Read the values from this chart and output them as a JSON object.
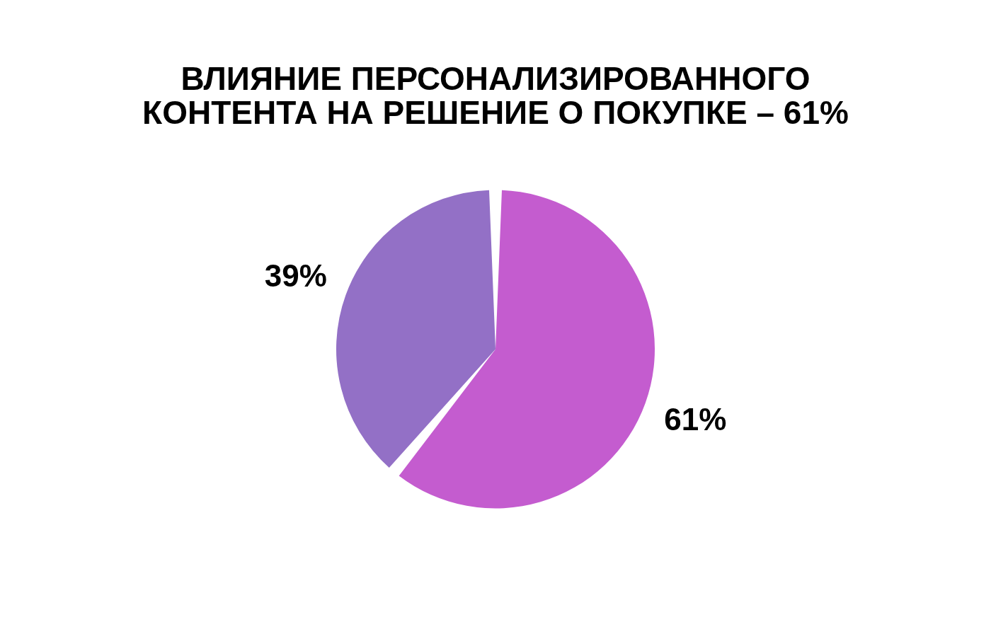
{
  "chart_data": {
    "type": "pie",
    "title": [
      "ВЛИЯНИЕ ПЕРСОНАЛИЗИРОВАННОГО",
      "КОНТЕНТА НА РЕШЕНИЕ О ПОКУПКЕ – 61%"
    ],
    "categories": [
      null,
      null
    ],
    "values": [
      61,
      39
    ],
    "colors": [
      "#c45ccf",
      "#9370c6"
    ],
    "value_labels": [
      "61%",
      "39%"
    ]
  }
}
